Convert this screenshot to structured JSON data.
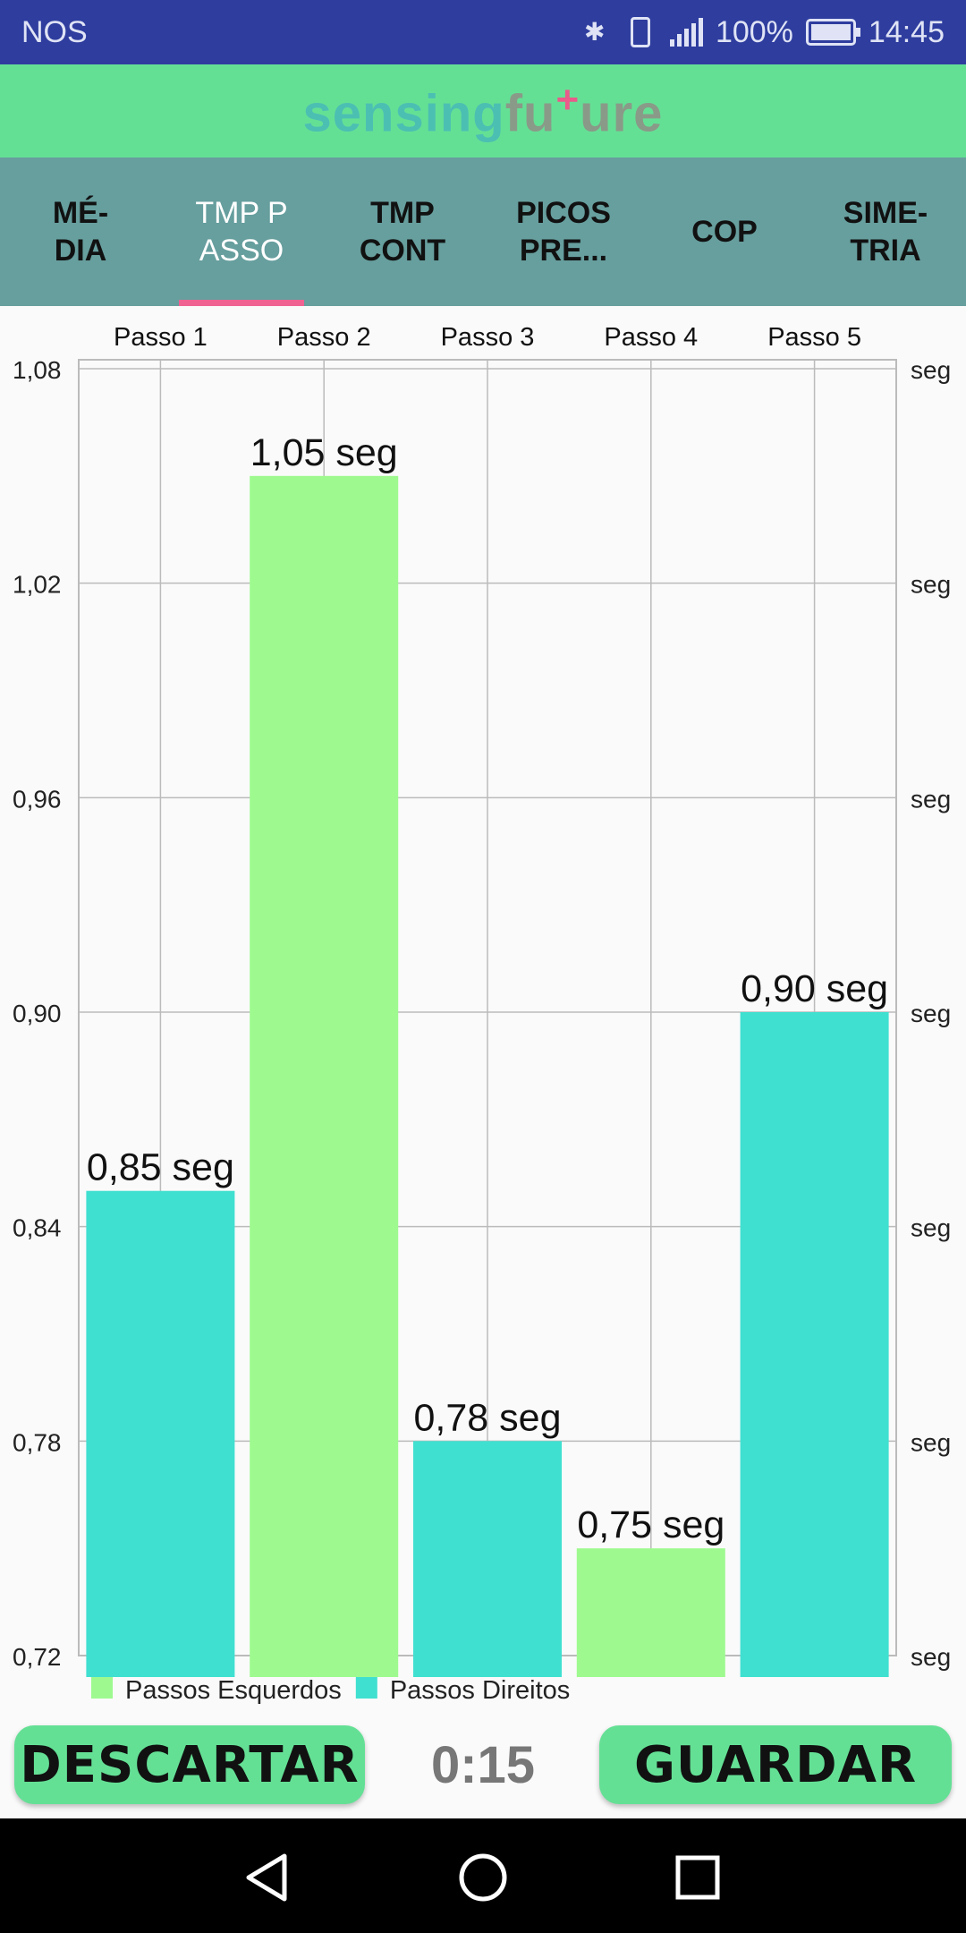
{
  "status_bar": {
    "carrier": "NOS",
    "battery": "100%",
    "time": "14:45"
  },
  "app_bar": {
    "logo_part1": "sensing",
    "logo_part2": "fu",
    "logo_plus": "+",
    "logo_part3": "ure"
  },
  "tabs": [
    {
      "label": "MÉ-\nDIA",
      "active": false
    },
    {
      "label": "TMP P\nASSO",
      "active": true
    },
    {
      "label": "TMP\nCONT",
      "active": false
    },
    {
      "label": "PICOS\nPRE...",
      "active": false
    },
    {
      "label": "COP",
      "active": false
    },
    {
      "label": "SIME-\nTRIA",
      "active": false
    }
  ],
  "chart_data": {
    "type": "bar",
    "categories": [
      "Passo 1",
      "Passo 2",
      "Passo 3",
      "Passo 4",
      "Passo 5"
    ],
    "values": [
      0.85,
      1.05,
      0.78,
      0.75,
      0.9
    ],
    "value_labels": [
      "0,85 seg",
      "1,05 seg",
      "0,78 seg",
      "0,75 seg",
      "0,90 seg"
    ],
    "bar_series": [
      "Passos Direitos",
      "Passos Esquerdos",
      "Passos Direitos",
      "Passos Esquerdos",
      "Passos Direitos"
    ],
    "ylim": [
      0.72,
      1.08
    ],
    "y_ticks": [
      1.08,
      1.02,
      0.96,
      0.9,
      0.84,
      0.78,
      0.72
    ],
    "y_tick_labels": [
      "1,08",
      "1,02",
      "0,96",
      "0,90",
      "0,84",
      "0,78",
      "0,72"
    ],
    "right_axis_label": "seg",
    "x_axis_position": "top",
    "grid": true,
    "legend_position": "bottom-left",
    "series": [
      {
        "name": "Passos Esquerdos",
        "color": "#9efa8f"
      },
      {
        "name": "Passos Direitos",
        "color": "#40e0d0"
      }
    ]
  },
  "controls": {
    "discard_label": "DESCARTAR",
    "timer": "0:15",
    "save_label": "GUARDAR"
  },
  "nav_bar": {
    "back_icon": "back-triangle-icon",
    "home_icon": "home-circle-icon",
    "recents_icon": "recents-square-icon"
  }
}
